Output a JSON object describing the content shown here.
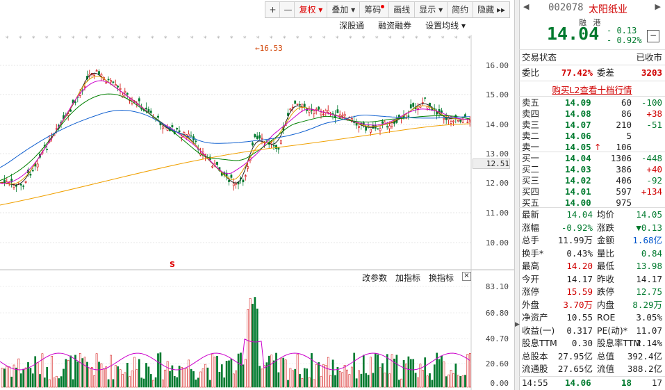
{
  "toolbar": {
    "plus": "+",
    "minus": "—",
    "fuquan": "复权",
    "diejia": "叠加",
    "chouma": "筹码",
    "huaxian": "画线",
    "xianshi": "显示",
    "jianyue": "简约",
    "yincang": "隐藏",
    "more": "▸▸"
  },
  "subbar": {
    "shengutong": "深股通",
    "rongzirongquan": "融资融券",
    "set_ma": "设置均线"
  },
  "indicator_bar": {
    "change_param": "改参数",
    "add_indicator": "加指标",
    "switch_indicator": "换指标",
    "close": "×"
  },
  "price_axis": [
    "16.00",
    "15.00",
    "14.00",
    "13.00",
    "12.00",
    "11.00",
    "10.00"
  ],
  "price_axis_highlight": "12.51",
  "peak_label": "←16.53",
  "s_mark": "S",
  "volume_axis": [
    "83.10",
    "60.80",
    "40.70",
    "20.60",
    "0.00"
  ],
  "colors": {
    "up": "#d00000",
    "down": "#007a2e",
    "blue": "#0055cc"
  },
  "quote": {
    "code": "002078",
    "name": "太阳纸业",
    "badge_rong": "融",
    "badge_gang": "港",
    "price": "14.04",
    "change": "- 0.13",
    "change_pct": "- 0.92%",
    "minus_btn": "−",
    "trade_status_label": "交易状态",
    "trade_status_value": "已收市",
    "weibi_label": "委比",
    "weibi_value": "77.42%",
    "weicha_label": "委差",
    "weicha_value": "3203",
    "l2_link": "购买L2查看十档行情"
  },
  "orderbook": {
    "asks": [
      {
        "label": "卖五",
        "price": "14.09",
        "vol": "60",
        "chg": "-100"
      },
      {
        "label": "卖四",
        "price": "14.08",
        "vol": "86",
        "chg": "+38"
      },
      {
        "label": "卖三",
        "price": "14.07",
        "vol": "210",
        "chg": "-51"
      },
      {
        "label": "卖二",
        "price": "14.06",
        "vol": "5",
        "chg": ""
      },
      {
        "label": "卖一",
        "price": "14.05",
        "vol": "106",
        "chg": "",
        "arrow": "↑"
      }
    ],
    "bids": [
      {
        "label": "买一",
        "price": "14.04",
        "vol": "1306",
        "chg": "-448"
      },
      {
        "label": "买二",
        "price": "14.03",
        "vol": "386",
        "chg": "+40"
      },
      {
        "label": "买三",
        "price": "14.02",
        "vol": "406",
        "chg": "-92"
      },
      {
        "label": "买四",
        "price": "14.01",
        "vol": "597",
        "chg": "+134"
      },
      {
        "label": "买五",
        "price": "14.00",
        "vol": "975",
        "chg": ""
      }
    ]
  },
  "stats": [
    {
      "l1": "最新",
      "v1": "14.04",
      "c1": "green",
      "l2": "均价",
      "v2": "14.05",
      "c2": "green"
    },
    {
      "l1": "涨幅",
      "v1": "-0.92%",
      "c1": "green",
      "l2": "涨跌",
      "v2": "▼0.13",
      "c2": "green"
    },
    {
      "l1": "总手",
      "v1": "11.99万",
      "c1": "black",
      "l2": "金额",
      "v2": "1.68亿",
      "c2": "blue"
    },
    {
      "l1": "换手*",
      "v1": "0.43%",
      "c1": "black",
      "l2": "量比",
      "v2": "0.84",
      "c2": "green"
    },
    {
      "l1": "最高",
      "v1": "14.20",
      "c1": "red",
      "l2": "最低",
      "v2": "13.98",
      "c2": "green"
    },
    {
      "l1": "今开",
      "v1": "14.17",
      "c1": "black",
      "l2": "昨收",
      "v2": "14.17",
      "c2": "black"
    },
    {
      "l1": "涨停",
      "v1": "15.59",
      "c1": "red",
      "l2": "跌停",
      "v2": "12.75",
      "c2": "green"
    },
    {
      "l1": "外盘",
      "v1": "3.70万",
      "c1": "red",
      "l2": "内盘",
      "v2": "8.29万",
      "c2": "green"
    },
    {
      "l1": "净资产",
      "v1": "10.55",
      "c1": "black",
      "l2": "ROE",
      "v2": "3.05%",
      "c2": "black"
    },
    {
      "l1": "收益(一)",
      "v1": "0.317",
      "c1": "black",
      "l2": "PE(动)*",
      "v2": "11.07",
      "c2": "black"
    },
    {
      "l1": "股息TTM",
      "v1": "0.30",
      "c1": "black",
      "l2": "股息率TTM",
      "v2": "2.14%",
      "c2": "black"
    },
    {
      "l1": "总股本",
      "v1": "27.95亿",
      "c1": "black",
      "l2": "总值",
      "v2": "392.4亿",
      "c2": "black"
    },
    {
      "l1": "流通股",
      "v1": "27.65亿",
      "c1": "black",
      "l2": "流值",
      "v2": "388.2亿",
      "c2": "black"
    }
  ],
  "tick": {
    "time": "14:55",
    "price": "14.06",
    "vol": "18",
    "num": "17"
  }
}
